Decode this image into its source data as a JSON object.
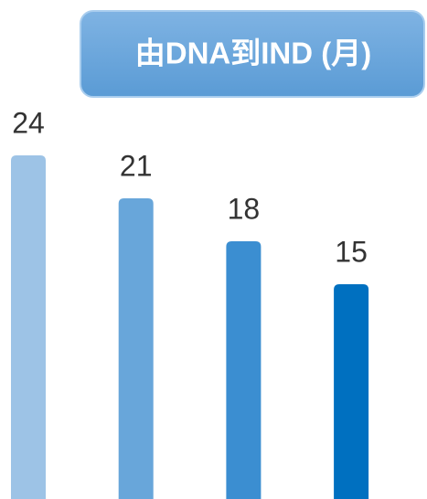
{
  "chart_data": {
    "type": "bar",
    "title": "由DNA到IND (月)",
    "values": [
      24,
      21,
      18,
      15
    ],
    "colors": [
      "#9dc3e6",
      "#68a6da",
      "#3b8ed1",
      "#0070c0"
    ]
  }
}
